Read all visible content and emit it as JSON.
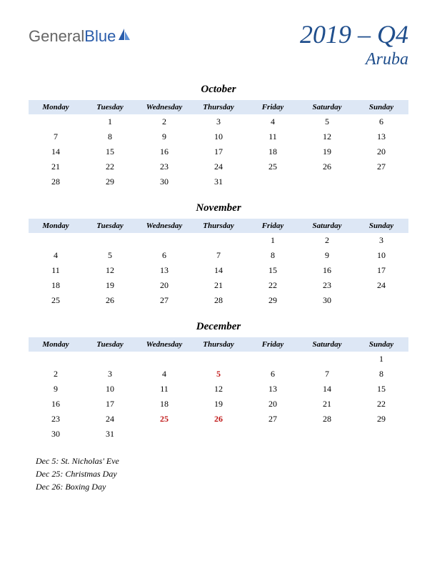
{
  "logo": {
    "part1": "General",
    "part2": "Blue"
  },
  "title": {
    "year_quarter": "2019 – Q4",
    "region": "Aruba"
  },
  "day_headers": [
    "Monday",
    "Tuesday",
    "Wednesday",
    "Thursday",
    "Friday",
    "Saturday",
    "Sunday"
  ],
  "colors": {
    "header_bg": "#dde7f5",
    "title_color": "#1f4e8c",
    "holiday_color": "#c01818",
    "logo_gray": "#666",
    "logo_blue": "#2a5caa"
  },
  "months": [
    {
      "name": "October",
      "weeks": [
        [
          "",
          "1",
          "2",
          "3",
          "4",
          "5",
          "6"
        ],
        [
          "7",
          "8",
          "9",
          "10",
          "11",
          "12",
          "13"
        ],
        [
          "14",
          "15",
          "16",
          "17",
          "18",
          "19",
          "20"
        ],
        [
          "21",
          "22",
          "23",
          "24",
          "25",
          "26",
          "27"
        ],
        [
          "28",
          "29",
          "30",
          "31",
          "",
          "",
          ""
        ]
      ],
      "holidays_cells": []
    },
    {
      "name": "November",
      "weeks": [
        [
          "",
          "",
          "",
          "",
          "1",
          "2",
          "3"
        ],
        [
          "4",
          "5",
          "6",
          "7",
          "8",
          "9",
          "10"
        ],
        [
          "11",
          "12",
          "13",
          "14",
          "15",
          "16",
          "17"
        ],
        [
          "18",
          "19",
          "20",
          "21",
          "22",
          "23",
          "24"
        ],
        [
          "25",
          "26",
          "27",
          "28",
          "29",
          "30",
          ""
        ]
      ],
      "holidays_cells": []
    },
    {
      "name": "December",
      "weeks": [
        [
          "",
          "",
          "",
          "",
          "",
          "",
          "1"
        ],
        [
          "2",
          "3",
          "4",
          "5",
          "6",
          "7",
          "8"
        ],
        [
          "9",
          "10",
          "11",
          "12",
          "13",
          "14",
          "15"
        ],
        [
          "16",
          "17",
          "18",
          "19",
          "20",
          "21",
          "22"
        ],
        [
          "23",
          "24",
          "25",
          "26",
          "27",
          "28",
          "29"
        ],
        [
          "30",
          "31",
          "",
          "",
          "",
          "",
          ""
        ]
      ],
      "holidays_cells": [
        [
          1,
          3
        ],
        [
          4,
          2
        ],
        [
          4,
          3
        ]
      ]
    }
  ],
  "holiday_notes": [
    "Dec 5: St. Nicholas' Eve",
    "Dec 25: Christmas Day",
    "Dec 26: Boxing Day"
  ]
}
